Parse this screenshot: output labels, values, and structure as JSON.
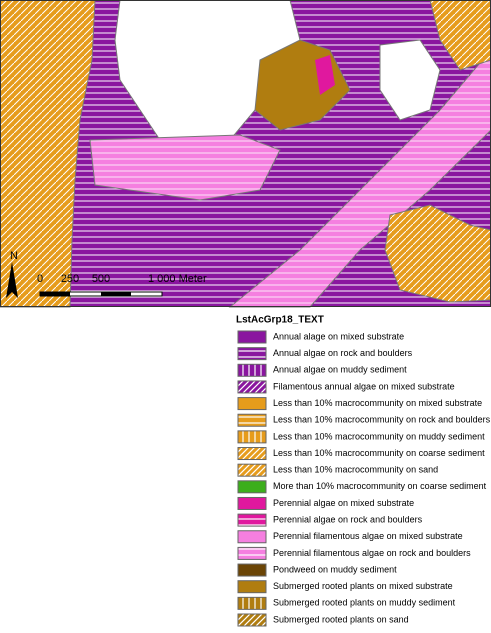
{
  "map": {
    "north": "N",
    "scale_labels": [
      "0",
      "250",
      "500",
      "1 000 Meter"
    ]
  },
  "legend": {
    "title": "LstAcGrp18_TEXT",
    "items": [
      {
        "label": "Annual alage on mixed substrate",
        "color": "#8a169f",
        "pattern": "solid"
      },
      {
        "label": "Annual algae on rock and boulders",
        "color": "#8a169f",
        "pattern": "horizontal"
      },
      {
        "label": "Annual algae on muddy sediment",
        "color": "#8a169f",
        "pattern": "vertical"
      },
      {
        "label": "Filamentous annual algae on mixed substrate",
        "color": "#8a169f",
        "pattern": "diagonal"
      },
      {
        "label": "Less than 10% macrocommunity on mixed substrate",
        "color": "#e69c1c",
        "pattern": "solid"
      },
      {
        "label": "Less than 10% macrocommunity on rock and boulders",
        "color": "#e69c1c",
        "pattern": "horizontal"
      },
      {
        "label": "Less than 10% macrocommunity on muddy sediment",
        "color": "#e69c1c",
        "pattern": "vertical"
      },
      {
        "label": "Less than 10% macrocommunity on coarse sediment",
        "color": "#e69c1c",
        "pattern": "diagonal"
      },
      {
        "label": "Less than 10% macrocommunity on sand",
        "color": "#e69c1c",
        "pattern": "diagonal"
      },
      {
        "label": "More than 10% macrocommunity on coarse sediment",
        "color": "#3cae1c",
        "pattern": "solid"
      },
      {
        "label": "Perennial algae on mixed substrate",
        "color": "#e0189e",
        "pattern": "solid"
      },
      {
        "label": "Perennial algae on rock and boulders",
        "color": "#e0189e",
        "pattern": "horizontal"
      },
      {
        "label": "Perennial filamentous algae on mixed substrate",
        "color": "#f57fe0",
        "pattern": "solid"
      },
      {
        "label": "Perennial filamentous algae on rock and boulders",
        "color": "#f57fe0",
        "pattern": "horizontal"
      },
      {
        "label": "Pondweed on muddy sediment",
        "color": "#6b4506",
        "pattern": "solid"
      },
      {
        "label": "Submerged rooted plants on mixed substrate",
        "color": "#b07d10",
        "pattern": "solid"
      },
      {
        "label": "Submerged rooted plants on muddy sediment",
        "color": "#b07d10",
        "pattern": "vertical"
      },
      {
        "label": "Submerged rooted plants on sand",
        "color": "#b07d10",
        "pattern": "diagonal"
      }
    ]
  }
}
